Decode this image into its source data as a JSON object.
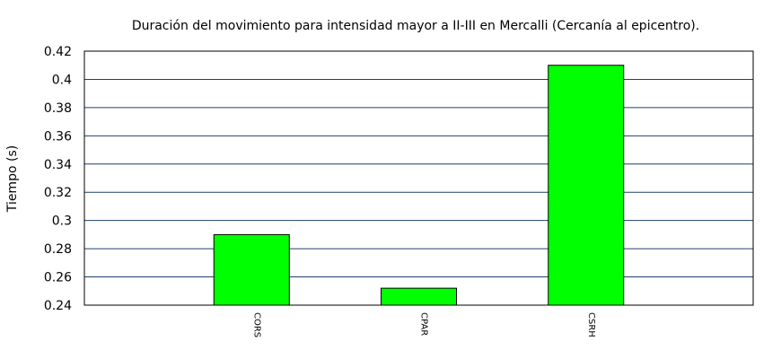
{
  "chart_data": {
    "type": "bar",
    "title": "Duración del movimiento para intensidad mayor a II-III en Mercalli (Cercanía al epicentro).",
    "xlabel": "",
    "ylabel": "Tiempo (s)",
    "categories": [
      "CORS",
      "CPAR",
      "CSRH"
    ],
    "values": [
      0.29,
      0.252,
      0.41
    ],
    "ylim": [
      0.24,
      0.42
    ],
    "yticks": [
      "0.24",
      "0.26",
      "0.28",
      "0.3",
      "0.32",
      "0.34",
      "0.36",
      "0.38",
      "0.4",
      "0.42"
    ],
    "grid": true,
    "legend": "none",
    "colors": {
      "bar": "#00ff00",
      "grid": "#1f3f6f",
      "frame": "#000000"
    }
  }
}
